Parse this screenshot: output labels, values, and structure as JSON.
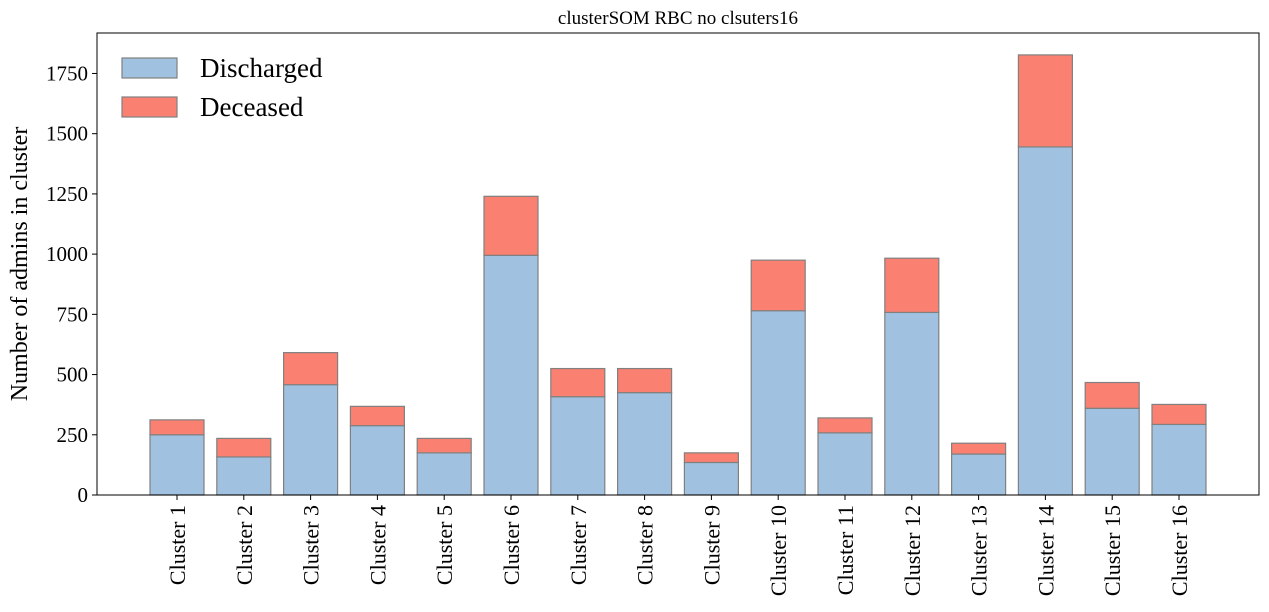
{
  "chart_data": {
    "type": "bar",
    "stacked": true,
    "title": "clusterSOM RBC no clsuters16",
    "xlabel": "",
    "ylabel": "Number of admins in cluster",
    "categories": [
      "Cluster 1",
      "Cluster 2",
      "Cluster 3",
      "Cluster 4",
      "Cluster 5",
      "Cluster 6",
      "Cluster 7",
      "Cluster 8",
      "Cluster 9",
      "Cluster 10",
      "Cluster 11",
      "Cluster 12",
      "Cluster 13",
      "Cluster 14",
      "Cluster 15",
      "Cluster 16"
    ],
    "series": [
      {
        "name": "Discharged",
        "color": "#a0c2e0",
        "values": [
          250,
          158,
          458,
          288,
          175,
          995,
          408,
          425,
          135,
          765,
          258,
          758,
          170,
          1445,
          360,
          293
        ]
      },
      {
        "name": "Deceased",
        "color": "#fa8072",
        "values": [
          62,
          77,
          133,
          80,
          60,
          245,
          117,
          100,
          40,
          210,
          62,
          225,
          45,
          382,
          107,
          83
        ]
      }
    ],
    "ylim": [
      0,
      1918
    ],
    "yticks": [
      0,
      250,
      500,
      750,
      1000,
      1250,
      1500,
      1750
    ],
    "legend_position": "top-left",
    "grid": false
  }
}
